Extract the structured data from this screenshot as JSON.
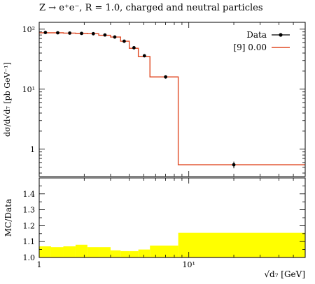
{
  "chart_data": [
    {
      "type": "line",
      "title": "Z → e⁺e⁻, R = 1.0, charged and neutral particles",
      "xlabel": "√d₇ [GeV]",
      "ylabel": "dσ/d√d₇ [pb GeV⁻¹]",
      "xscale": "log",
      "yscale": "log",
      "xlim": [
        1,
        60
      ],
      "ylim": [
        0.35,
        130
      ],
      "x_ticks": [
        "1",
        "10¹"
      ],
      "y_ticks": [
        "10²",
        "10¹",
        "1"
      ],
      "legend_position": "top-right",
      "series": [
        {
          "name": "Data",
          "style": "points-with-errorbars",
          "color": "#000000",
          "x": [
            1.1,
            1.33,
            1.6,
            1.92,
            2.3,
            2.75,
            3.2,
            3.7,
            4.3,
            5.05,
            7.0,
            20.0
          ],
          "y": [
            88,
            87,
            86,
            85,
            84,
            80,
            74,
            63,
            49,
            36,
            16,
            0.55
          ],
          "y_err": [
            3,
            3,
            3,
            3,
            3,
            3,
            2.5,
            2.5,
            2,
            1.5,
            1,
            0.07
          ]
        },
        {
          "name": "[9] 0.00",
          "style": "step",
          "color": "#e04a24",
          "bin_edges": [
            1.0,
            1.2,
            1.45,
            1.75,
            2.1,
            2.5,
            3.0,
            3.5,
            4.0,
            4.6,
            5.5,
            8.5,
            60.0
          ],
          "values": [
            87,
            87,
            86,
            85,
            84,
            79,
            74,
            63,
            48,
            35,
            16,
            0.55
          ]
        }
      ]
    },
    {
      "type": "area",
      "ylabel": "MC/Data",
      "xscale": "log",
      "xlim": [
        1,
        60
      ],
      "ylim": [
        1.0,
        1.5
      ],
      "x_ticks": [
        "1",
        "10¹"
      ],
      "y_ticks": [
        "1.0",
        "1.1",
        "1.2",
        "1.3",
        "1.4"
      ],
      "band_color": "#ffff00",
      "band": {
        "bin_edges": [
          1.0,
          1.2,
          1.45,
          1.75,
          2.1,
          2.5,
          3.0,
          3.5,
          4.0,
          4.6,
          5.5,
          8.5,
          60.0
        ],
        "upper": [
          1.07,
          1.065,
          1.07,
          1.08,
          1.065,
          1.065,
          1.045,
          1.04,
          1.04,
          1.05,
          1.075,
          1.155
        ],
        "lower": [
          1.0,
          1.0,
          1.0,
          1.0,
          1.0,
          1.0,
          1.0,
          1.0,
          1.0,
          1.0,
          1.0,
          1.0
        ]
      }
    }
  ]
}
